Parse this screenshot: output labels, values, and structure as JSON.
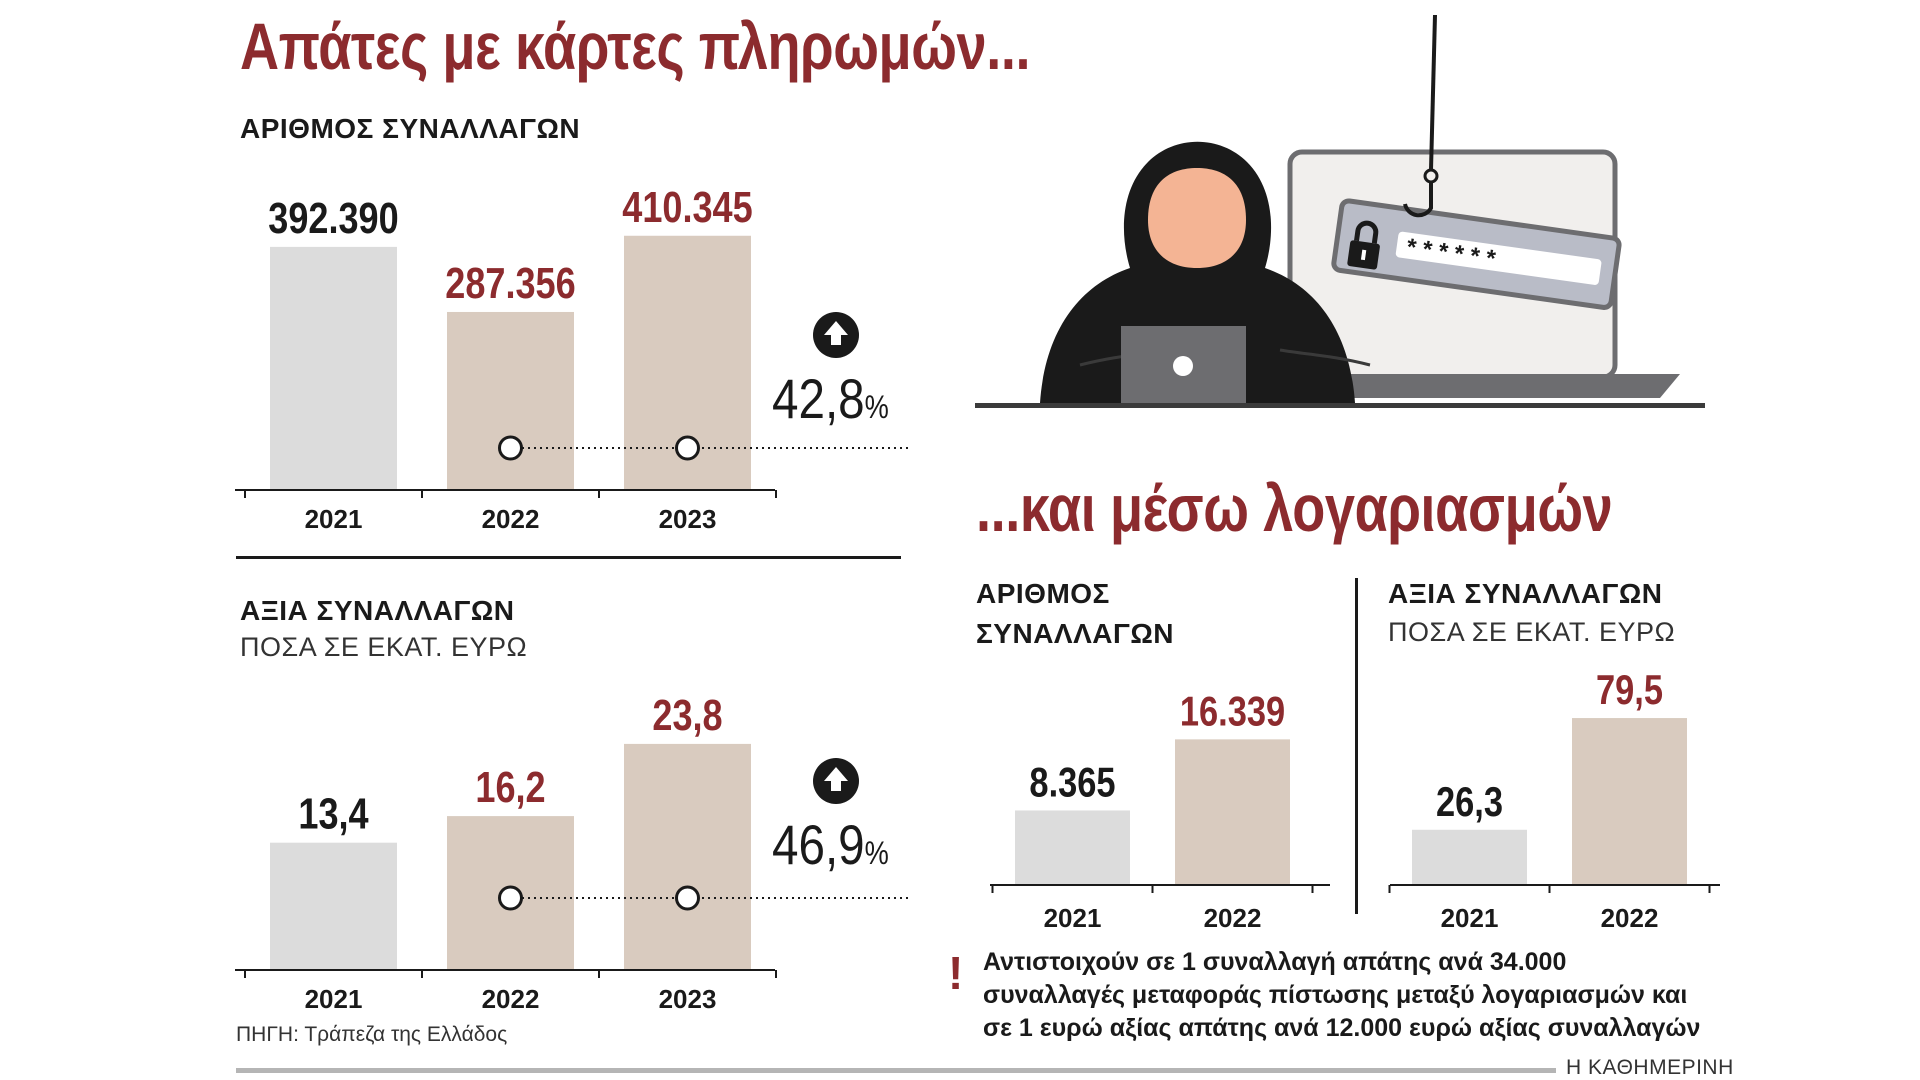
{
  "colors": {
    "accent": "#8c2b2e",
    "bar_light": "#dcdcdc",
    "bar_beige": "#d9cbbf",
    "dark": "#1a1a1a"
  },
  "headline_cards": "Απάτες με κάρτες πληρωμών...",
  "headline_accounts": "...και μέσω λογαριασμών",
  "cards_count": {
    "label": "ΑΡΙΘΜΟΣ ΣΥΝΑΛΛΑΓΩΝ",
    "change_value": "42,8",
    "change_unit": "%"
  },
  "cards_value": {
    "label": "ΑΞΙΑ ΣΥΝΑΛΛΑΓΩΝ",
    "sublabel": "ΠΟΣΑ ΣΕ ΕΚΑΤ. ΕΥΡΩ",
    "change_value": "46,9",
    "change_unit": "%"
  },
  "acc_count": {
    "label_line1": "ΑΡΙΘΜΟΣ",
    "label_line2": "ΣΥΝΑΛΛΑΓΩΝ"
  },
  "acc_value": {
    "label": "ΑΞΙΑ ΣΥΝΑΛΛΑΓΩΝ",
    "sublabel": "ΠΟΣΑ ΣΕ ΕΚΑΤ. ΕΥΡΩ"
  },
  "note": {
    "line1": "Αντιστοιχούν σε 1 συναλλαγή απάτης ανά 34.000",
    "line2": "συναλλαγές μεταφοράς πίστωσης μεταξύ λογαριασμών και",
    "line3": "σε 1 ευρώ αξίας απάτης ανά 12.000 ευρώ αξίας συναλλαγών"
  },
  "source": "ΠΗΓΗ: Τράπεζα της Ελλάδος",
  "brand": "Η ΚΑΘΗΜΕΡΙΝΗ",
  "illustration": {
    "icons": [
      "hooded-hacker-icon",
      "laptop-icon",
      "fishing-hook-icon",
      "padlock-icon",
      "password-field-icon"
    ],
    "password_mask": "* * * * * *"
  },
  "chart_data": [
    {
      "id": "cards_count",
      "type": "bar",
      "categories": [
        "2021",
        "2022",
        "2023"
      ],
      "values": [
        392390,
        287356,
        410345
      ],
      "value_labels": [
        "392.390",
        "287.356",
        "410.345"
      ],
      "ylim": [
        0,
        460000
      ],
      "value_label_colors": [
        "#1a1a1a",
        "#8c2b2e",
        "#8c2b2e"
      ],
      "bar_colors": [
        "#dcdcdc",
        "#d9cbbf",
        "#d9cbbf"
      ]
    },
    {
      "id": "cards_value",
      "type": "bar",
      "categories": [
        "2021",
        "2022",
        "2023"
      ],
      "values": [
        13.4,
        16.2,
        23.8
      ],
      "value_labels": [
        "13,4",
        "16,2",
        "23,8"
      ],
      "ylim": [
        0,
        30
      ],
      "value_label_colors": [
        "#1a1a1a",
        "#8c2b2e",
        "#8c2b2e"
      ],
      "bar_colors": [
        "#dcdcdc",
        "#d9cbbf",
        "#d9cbbf"
      ]
    },
    {
      "id": "acc_count",
      "type": "bar",
      "categories": [
        "2021",
        "2022"
      ],
      "values": [
        8365,
        16339
      ],
      "value_labels": [
        "8.365",
        "16.339"
      ],
      "ylim": [
        0,
        23000
      ],
      "value_label_colors": [
        "#1a1a1a",
        "#8c2b2e"
      ],
      "bar_colors": [
        "#dcdcdc",
        "#d9cbbf"
      ]
    },
    {
      "id": "acc_value",
      "type": "bar",
      "categories": [
        "2021",
        "2022"
      ],
      "values": [
        26.3,
        79.5
      ],
      "value_labels": [
        "26,3",
        "79,5"
      ],
      "ylim": [
        0,
        100
      ],
      "value_label_colors": [
        "#1a1a1a",
        "#8c2b2e"
      ],
      "bar_colors": [
        "#dcdcdc",
        "#d9cbbf"
      ]
    }
  ]
}
